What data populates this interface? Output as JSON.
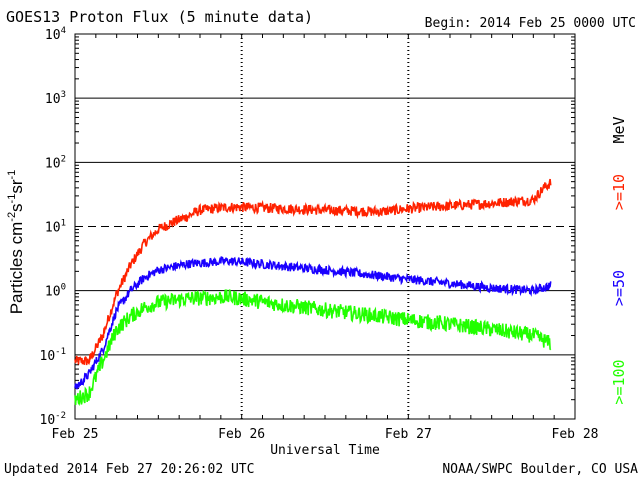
{
  "header": {
    "title": "GOES13 Proton Flux (5 minute data)",
    "begin": "Begin: 2014 Feb 25 0000 UTC"
  },
  "footer": {
    "updated": "Updated 2014 Feb 27 20:26:02 UTC",
    "credit": "NOAA/SWPC Boulder, CO USA"
  },
  "colors": {
    "series_10": "#ff2200",
    "series_50": "#1a00ff",
    "series_100": "#22ff00",
    "grid": "#000000"
  },
  "chart_data": {
    "type": "line",
    "xlabel": "Universal Time",
    "ylabel": "Particles cm-2s-1sr-1",
    "y_scale": "log",
    "ylim": [
      0.01,
      10000
    ],
    "xlim": [
      "2014-02-25 00:00",
      "2014-02-28 00:00"
    ],
    "x_ticks": [
      "Feb 25",
      "Feb 26",
      "Feb 27",
      "Feb 28"
    ],
    "y_ticks": [
      {
        "value": 0.01,
        "base": "10",
        "exp": "-2"
      },
      {
        "value": 0.1,
        "base": "10",
        "exp": "-1"
      },
      {
        "value": 1,
        "base": "10",
        "exp": "0"
      },
      {
        "value": 10,
        "base": "10",
        "exp": "1"
      },
      {
        "value": 100,
        "base": "10",
        "exp": "2"
      },
      {
        "value": 1000,
        "base": "10",
        "exp": "3"
      },
      {
        "value": 10000,
        "base": "10",
        "exp": "4"
      }
    ],
    "dashed_threshold": 10,
    "right_unit": "MeV",
    "series": [
      {
        "name": ">=10",
        "color": "#ff2200",
        "noise": 0.08,
        "points": [
          [
            "2014-02-25 00:00",
            0.08
          ],
          [
            "2014-02-25 02:00",
            0.08
          ],
          [
            "2014-02-25 04:00",
            0.2
          ],
          [
            "2014-02-25 06:00",
            0.9
          ],
          [
            "2014-02-25 08:00",
            2.5
          ],
          [
            "2014-02-25 10:00",
            5.5
          ],
          [
            "2014-02-25 12:00",
            9
          ],
          [
            "2014-02-25 14:00",
            11.5
          ],
          [
            "2014-02-25 16:00",
            14
          ],
          [
            "2014-02-25 18:00",
            18
          ],
          [
            "2014-02-25 22:00",
            20
          ],
          [
            "2014-02-26 00:00",
            20
          ],
          [
            "2014-02-26 06:00",
            19
          ],
          [
            "2014-02-26 12:00",
            18
          ],
          [
            "2014-02-26 20:00",
            17
          ],
          [
            "2014-02-27 00:00",
            19
          ],
          [
            "2014-02-27 06:00",
            21
          ],
          [
            "2014-02-27 12:00",
            23
          ],
          [
            "2014-02-27 18:00",
            26
          ],
          [
            "2014-02-27 19:30",
            40
          ],
          [
            "2014-02-27 20:30",
            48
          ]
        ]
      },
      {
        "name": ">=50",
        "color": "#1a00ff",
        "noise": 0.07,
        "points": [
          [
            "2014-02-25 00:00",
            0.03
          ],
          [
            "2014-02-25 02:00",
            0.05
          ],
          [
            "2014-02-25 04:00",
            0.12
          ],
          [
            "2014-02-25 06:00",
            0.5
          ],
          [
            "2014-02-25 08:00",
            1.0
          ],
          [
            "2014-02-25 10:00",
            1.6
          ],
          [
            "2014-02-25 12:00",
            2.1
          ],
          [
            "2014-02-25 16:00",
            2.6
          ],
          [
            "2014-02-25 22:00",
            2.9
          ],
          [
            "2014-02-26 00:00",
            2.8
          ],
          [
            "2014-02-26 06:00",
            2.4
          ],
          [
            "2014-02-26 12:00",
            2.1
          ],
          [
            "2014-02-26 18:00",
            1.8
          ],
          [
            "2014-02-27 00:00",
            1.5
          ],
          [
            "2014-02-27 06:00",
            1.3
          ],
          [
            "2014-02-27 12:00",
            1.1
          ],
          [
            "2014-02-27 18:00",
            1.0
          ],
          [
            "2014-02-27 20:30",
            1.2
          ]
        ]
      },
      {
        "name": ">=100",
        "color": "#22ff00",
        "noise": 0.12,
        "points": [
          [
            "2014-02-25 00:00",
            0.02
          ],
          [
            "2014-02-25 02:00",
            0.025
          ],
          [
            "2014-02-25 04:00",
            0.08
          ],
          [
            "2014-02-25 06:00",
            0.25
          ],
          [
            "2014-02-25 08:00",
            0.4
          ],
          [
            "2014-02-25 10:00",
            0.55
          ],
          [
            "2014-02-25 12:00",
            0.65
          ],
          [
            "2014-02-25 16:00",
            0.75
          ],
          [
            "2014-02-25 22:00",
            0.8
          ],
          [
            "2014-02-26 00:00",
            0.75
          ],
          [
            "2014-02-26 06:00",
            0.6
          ],
          [
            "2014-02-26 12:00",
            0.5
          ],
          [
            "2014-02-26 18:00",
            0.42
          ],
          [
            "2014-02-27 00:00",
            0.35
          ],
          [
            "2014-02-27 06:00",
            0.3
          ],
          [
            "2014-02-27 12:00",
            0.25
          ],
          [
            "2014-02-27 18:00",
            0.2
          ],
          [
            "2014-02-27 20:30",
            0.15
          ]
        ]
      }
    ]
  }
}
